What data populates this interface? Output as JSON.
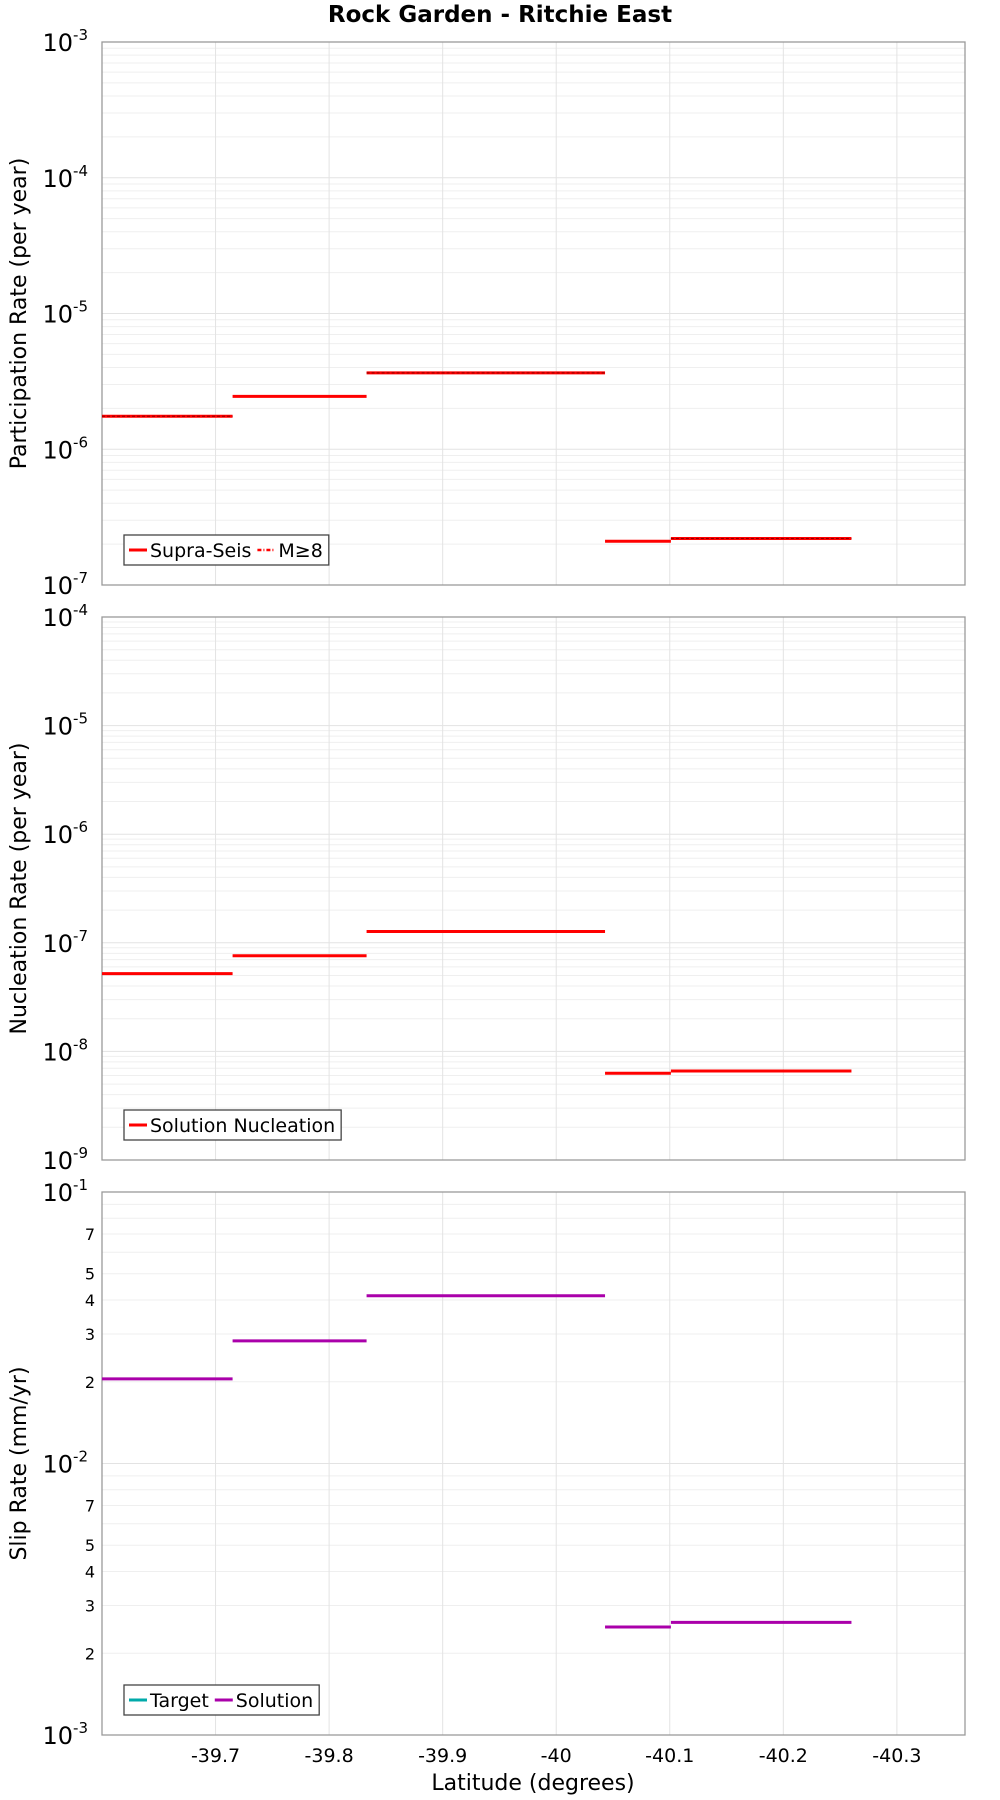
{
  "title": "Rock Garden - Ritchie East",
  "xlabel": "Latitude (degrees)",
  "x_ticks": [
    "-39.7",
    "-39.8",
    "-39.9",
    "-40",
    "-40.1",
    "-40.2",
    "-40.3"
  ],
  "chart_data": [
    {
      "type": "line",
      "ylabel": "Participation Rate (per year)",
      "yscale": "log",
      "ylim": [
        1e-07,
        0.001
      ],
      "xlim": [
        -39.6,
        -40.36
      ],
      "y_ticks": [
        {
          "base": "10",
          "exp": "-3"
        },
        {
          "base": "10",
          "exp": "-4"
        },
        {
          "base": "10",
          "exp": "-5"
        },
        {
          "base": "10",
          "exp": "-6"
        },
        {
          "base": "10",
          "exp": "-7"
        }
      ],
      "legend": [
        {
          "label": "Supra-Seis",
          "color": "#ff0000",
          "style": "solid"
        },
        {
          "label": "M≥8",
          "color": "#ff0000",
          "style": "dashdot"
        }
      ],
      "series": [
        {
          "name": "Supra-Seis",
          "color": "#ff0000",
          "segments": [
            {
              "x0": -39.6,
              "x1": -39.715,
              "y": 1.75e-06
            },
            {
              "x0": -39.715,
              "x1": -39.833,
              "y": 2.45e-06
            },
            {
              "x0": -39.833,
              "x1": -40.043,
              "y": 3.65e-06
            },
            {
              "x0": -40.043,
              "x1": -40.101,
              "y": 2.1e-07
            },
            {
              "x0": -40.101,
              "x1": -40.26,
              "y": 2.2e-07
            }
          ]
        },
        {
          "name": "M≥8",
          "color": "#ff0000",
          "dashed": true,
          "segments": [
            {
              "x0": -39.6,
              "x1": -39.715,
              "y": 1.75e-06
            },
            {
              "x0": -39.833,
              "x1": -40.043,
              "y": 3.65e-06
            },
            {
              "x0": -40.101,
              "x1": -40.26,
              "y": 2.2e-07
            }
          ]
        }
      ]
    },
    {
      "type": "line",
      "ylabel": "Nucleation Rate (per year)",
      "yscale": "log",
      "ylim": [
        1e-09,
        0.0001
      ],
      "xlim": [
        -39.6,
        -40.36
      ],
      "y_ticks": [
        {
          "base": "10",
          "exp": "-4"
        },
        {
          "base": "10",
          "exp": "-5"
        },
        {
          "base": "10",
          "exp": "-6"
        },
        {
          "base": "10",
          "exp": "-7"
        },
        {
          "base": "10",
          "exp": "-8"
        },
        {
          "base": "10",
          "exp": "-9"
        }
      ],
      "legend": [
        {
          "label": "Solution Nucleation",
          "color": "#ff0000",
          "style": "solid"
        }
      ],
      "series": [
        {
          "name": "Solution Nucleation",
          "color": "#ff0000",
          "segments": [
            {
              "x0": -39.6,
              "x1": -39.715,
              "y": 5.2e-08
            },
            {
              "x0": -39.715,
              "x1": -39.833,
              "y": 7.6e-08
            },
            {
              "x0": -39.833,
              "x1": -40.043,
              "y": 1.27e-07
            },
            {
              "x0": -40.043,
              "x1": -40.101,
              "y": 6.3e-09
            },
            {
              "x0": -40.101,
              "x1": -40.26,
              "y": 6.6e-09
            }
          ]
        }
      ]
    },
    {
      "type": "line",
      "ylabel": "Slip Rate (mm/yr)",
      "yscale": "log",
      "ylim": [
        0.001,
        0.1
      ],
      "xlim": [
        -39.6,
        -40.36
      ],
      "y_ticks": [
        {
          "base": "10",
          "exp": "-1"
        },
        {
          "base": "10",
          "exp": "-2"
        },
        {
          "base": "10",
          "exp": "-3"
        }
      ],
      "y_minor_labels": [
        {
          "label": "7",
          "value": 0.07
        },
        {
          "label": "5",
          "value": 0.05
        },
        {
          "label": "4",
          "value": 0.04
        },
        {
          "label": "3",
          "value": 0.03
        },
        {
          "label": "2",
          "value": 0.02
        },
        {
          "label": "7",
          "value": 0.007
        },
        {
          "label": "5",
          "value": 0.005
        },
        {
          "label": "4",
          "value": 0.004
        },
        {
          "label": "3",
          "value": 0.003
        },
        {
          "label": "2",
          "value": 0.002
        }
      ],
      "legend": [
        {
          "label": "Target",
          "color": "#00aaaa",
          "style": "solid"
        },
        {
          "label": "Solution",
          "color": "#aa00aa",
          "style": "solid"
        }
      ],
      "series": [
        {
          "name": "Solution",
          "color": "#aa00aa",
          "segments": [
            {
              "x0": -39.6,
              "x1": -39.715,
              "y": 0.0205
            },
            {
              "x0": -39.715,
              "x1": -39.833,
              "y": 0.0283
            },
            {
              "x0": -39.833,
              "x1": -40.043,
              "y": 0.0415
            },
            {
              "x0": -40.043,
              "x1": -40.101,
              "y": 0.0025
            },
            {
              "x0": -40.101,
              "x1": -40.26,
              "y": 0.0026
            }
          ]
        }
      ]
    }
  ]
}
